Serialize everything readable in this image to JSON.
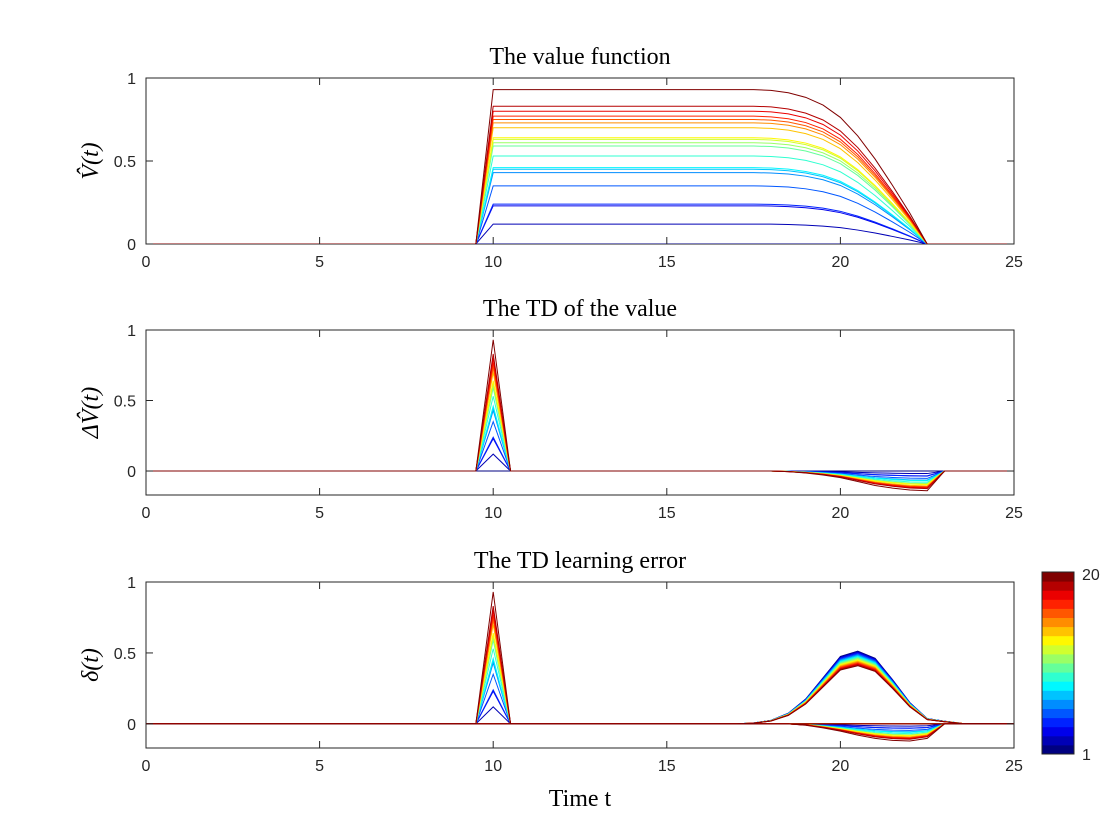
{
  "chart_data": [
    {
      "type": "line",
      "title": "The value function",
      "ylabel": "V̂(t)",
      "xlabel": "",
      "xlim": [
        0,
        25
      ],
      "ylim": [
        0,
        1
      ],
      "xticks": [
        "0",
        "5",
        "10",
        "15",
        "20",
        "25"
      ],
      "yticks": [
        "0",
        "0.5",
        "1"
      ],
      "series_count": 20,
      "series_amplitudes": [
        0.0,
        0.12,
        0.23,
        0.24,
        0.35,
        0.43,
        0.45,
        0.46,
        0.53,
        0.59,
        0.61,
        0.63,
        0.64,
        0.7,
        0.73,
        0.75,
        0.77,
        0.8,
        0.83,
        0.93
      ],
      "profile": {
        "x": [
          0,
          9.5,
          10,
          17.5,
          18,
          18.5,
          19,
          19.5,
          20,
          20.5,
          21,
          21.5,
          22,
          22.5,
          25
        ],
        "y": [
          0,
          0,
          1,
          1,
          0.995,
          0.98,
          0.95,
          0.9,
          0.82,
          0.7,
          0.55,
          0.38,
          0.2,
          0,
          0
        ]
      }
    },
    {
      "type": "line",
      "title": "The TD of the value",
      "ylabel": "ΔV̂(t)",
      "xlabel": "",
      "xlim": [
        0,
        25
      ],
      "ylim": [
        -0.17,
        1
      ],
      "xticks": [
        "0",
        "5",
        "10",
        "15",
        "20",
        "25"
      ],
      "yticks": [
        "0",
        "0.5",
        "1"
      ],
      "series_count": 20,
      "series_amplitudes": [
        0.0,
        0.12,
        0.23,
        0.24,
        0.35,
        0.43,
        0.45,
        0.46,
        0.53,
        0.59,
        0.61,
        0.63,
        0.64,
        0.7,
        0.73,
        0.75,
        0.77,
        0.8,
        0.83,
        0.93
      ],
      "profile": {
        "x": [
          0,
          9.5,
          10,
          10.5,
          18,
          18.5,
          19,
          19.5,
          20,
          20.5,
          21,
          21.5,
          22,
          22.5,
          23,
          25
        ],
        "y": [
          0,
          0,
          1,
          0,
          0,
          -0.005,
          -0.015,
          -0.03,
          -0.05,
          -0.08,
          -0.11,
          -0.13,
          -0.145,
          -0.15,
          0,
          0
        ]
      }
    },
    {
      "type": "line",
      "title": "The TD learning error",
      "ylabel": "δ(t)",
      "xlabel": "Time t",
      "xlim": [
        0,
        25
      ],
      "ylim": [
        -0.17,
        1
      ],
      "xticks": [
        "0",
        "5",
        "10",
        "15",
        "20",
        "25"
      ],
      "yticks": [
        "0",
        "0.5",
        "1"
      ],
      "series_count": 20,
      "series_amplitudes": [
        0.0,
        0.12,
        0.23,
        0.24,
        0.35,
        0.43,
        0.45,
        0.46,
        0.53,
        0.59,
        0.61,
        0.63,
        0.64,
        0.7,
        0.73,
        0.75,
        0.77,
        0.8,
        0.83,
        0.93
      ],
      "spike_profile": {
        "x": [
          0,
          9.5,
          10,
          10.5,
          25
        ],
        "y": [
          0,
          0,
          1,
          0,
          0
        ]
      },
      "bump_profile": {
        "x": [
          0,
          17,
          17.5,
          18,
          18.5,
          19,
          19.5,
          20,
          20.5,
          21,
          21.5,
          22,
          22.5,
          23,
          23.5,
          25
        ],
        "y": [
          0,
          0,
          0.005,
          0.02,
          0.06,
          0.14,
          0.26,
          0.38,
          0.41,
          0.37,
          0.25,
          0.12,
          0.03,
          0.015,
          0.003,
          0
        ]
      },
      "bump_extra_profile": {
        "x": [
          0,
          19,
          19.5,
          20,
          20.5,
          21,
          21.5,
          22,
          22.5,
          23
        ],
        "y": [
          0,
          0,
          0.02,
          0.04,
          0.07,
          0.08,
          0.07,
          0.05,
          0.03,
          0
        ]
      },
      "dip_profile": {
        "x": [
          0,
          18.5,
          19,
          19.5,
          20,
          20.5,
          21,
          21.5,
          22,
          22.5,
          23,
          25
        ],
        "y": [
          0,
          0,
          -0.01,
          -0.03,
          -0.055,
          -0.085,
          -0.11,
          -0.125,
          -0.13,
          -0.11,
          0,
          0
        ]
      }
    }
  ],
  "colorbar": {
    "min_label": "1",
    "max_label": "20",
    "levels": 20
  }
}
